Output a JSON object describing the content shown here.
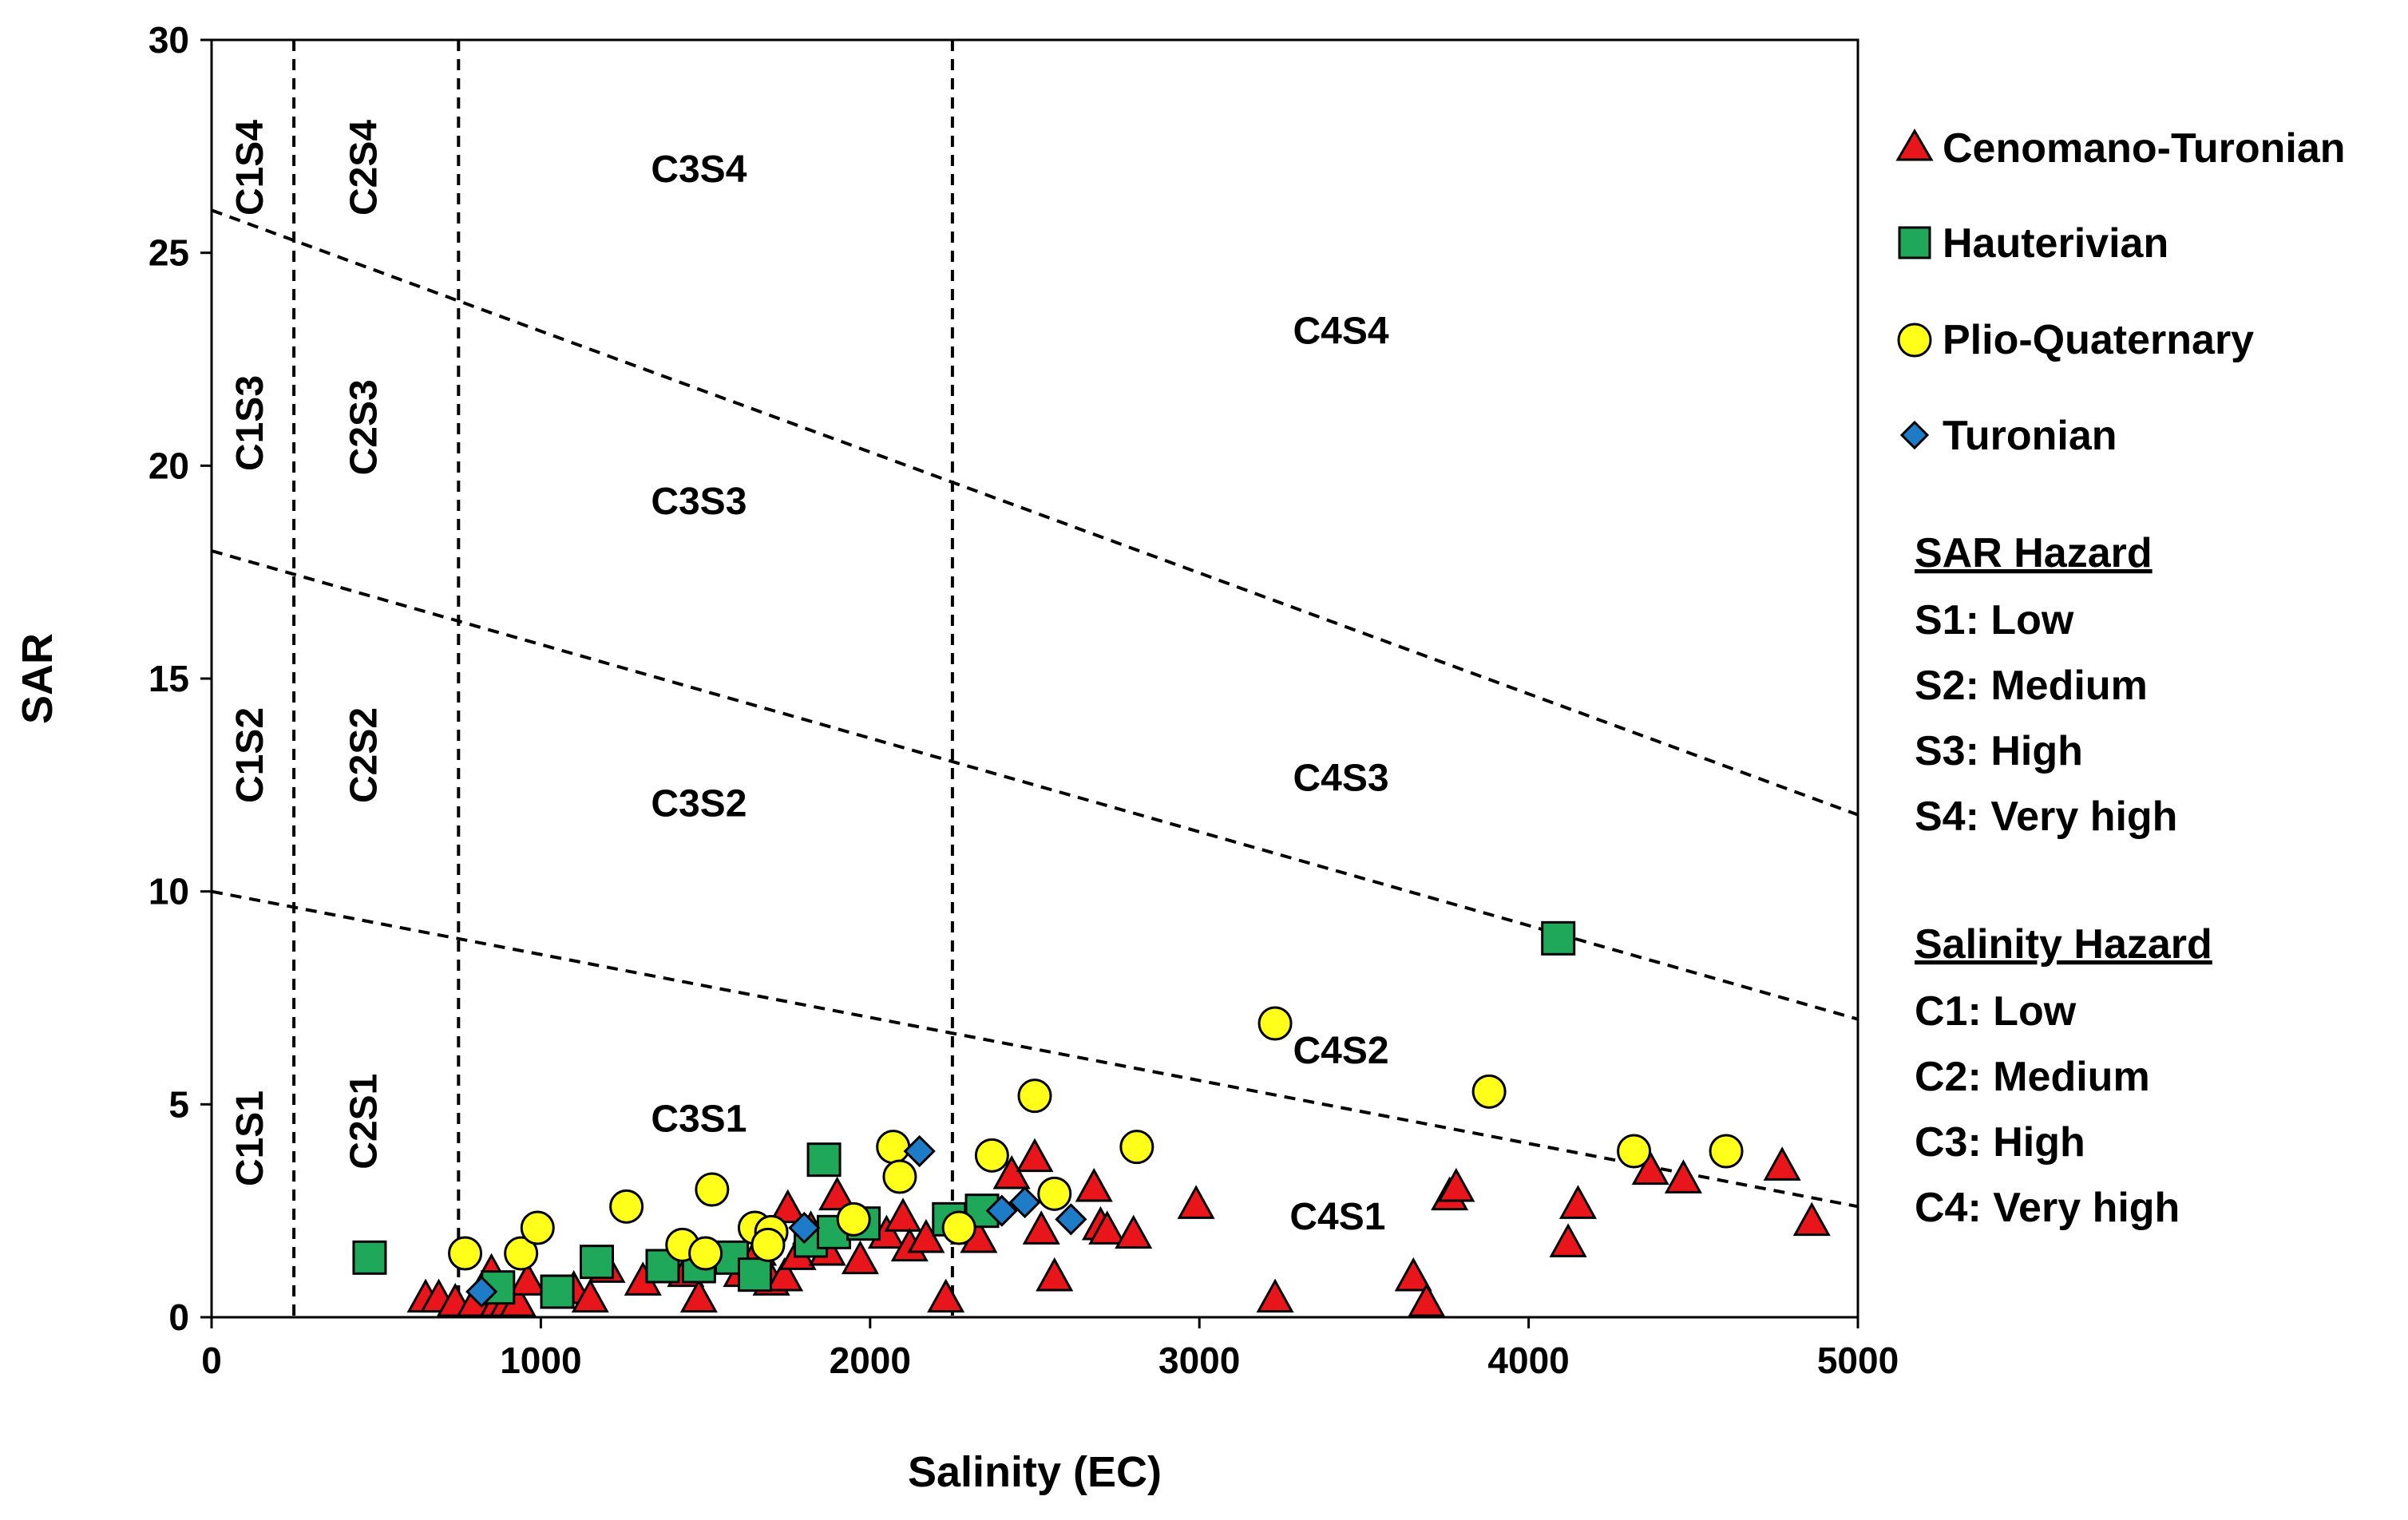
{
  "chart_data": {
    "type": "scatter",
    "title": "",
    "xlabel": "Salinity (EC)",
    "ylabel": "SAR",
    "xlim": [
      0,
      5000
    ],
    "ylim": [
      0,
      30
    ],
    "xticks": [
      "0",
      "1000",
      "2000",
      "3000",
      "4000",
      "5000"
    ],
    "xtick_values": [
      0,
      1000,
      2000,
      3000,
      4000,
      5000
    ],
    "yticks": [
      "0",
      "5",
      "10",
      "15",
      "20",
      "25",
      "30"
    ],
    "ytick_values": [
      0,
      5,
      10,
      15,
      20,
      25,
      30
    ],
    "grid": false,
    "legend_position": "right",
    "boundaries": {
      "salinity_verticals": [
        250,
        750,
        2250
      ],
      "sar_lines": [
        {
          "x0": 0,
          "y0": 10,
          "x1": 5000,
          "y1": 2.6
        },
        {
          "x0": 0,
          "y0": 18,
          "x1": 5000,
          "y1": 7
        },
        {
          "x0": 0,
          "y0": 26,
          "x1": 5000,
          "y1": 11.8
        }
      ]
    },
    "regions": [
      {
        "label": "C1S4",
        "x": 125,
        "y": 27,
        "rotate": true
      },
      {
        "label": "C2S4",
        "x": 470,
        "y": 27,
        "rotate": true
      },
      {
        "label": "C3S4",
        "x": 1480,
        "y": 26.9,
        "rotate": false
      },
      {
        "label": "C4S4",
        "x": 3430,
        "y": 23.1,
        "rotate": false
      },
      {
        "label": "C1S3",
        "x": 125,
        "y": 21,
        "rotate": true
      },
      {
        "label": "C2S3",
        "x": 470,
        "y": 20.9,
        "rotate": true
      },
      {
        "label": "C3S3",
        "x": 1480,
        "y": 19.1,
        "rotate": false
      },
      {
        "label": "C4S3",
        "x": 3430,
        "y": 12.6,
        "rotate": false
      },
      {
        "label": "C1S2",
        "x": 125,
        "y": 13.2,
        "rotate": true
      },
      {
        "label": "C2S2",
        "x": 470,
        "y": 13.2,
        "rotate": true
      },
      {
        "label": "C3S2",
        "x": 1480,
        "y": 12,
        "rotate": false
      },
      {
        "label": "C4S2",
        "x": 3430,
        "y": 6.2,
        "rotate": false
      },
      {
        "label": "C1S1",
        "x": 125,
        "y": 4.2,
        "rotate": true
      },
      {
        "label": "C2S1",
        "x": 470,
        "y": 4.6,
        "rotate": true
      },
      {
        "label": "C3S1",
        "x": 1480,
        "y": 4.6,
        "rotate": false
      },
      {
        "label": "C4S1",
        "x": 3420,
        "y": 2.3,
        "rotate": false
      }
    ],
    "series": [
      {
        "name": "Cenomano-Turonian",
        "marker": "triangle",
        "color": "#e8161b",
        "points": [
          [
            650,
            0.4
          ],
          [
            690,
            0.4
          ],
          [
            740,
            0.3
          ],
          [
            800,
            0.3
          ],
          [
            850,
            1.0
          ],
          [
            870,
            0.3
          ],
          [
            900,
            0.3
          ],
          [
            930,
            0.3
          ],
          [
            960,
            0.8
          ],
          [
            1100,
            0.6
          ],
          [
            1150,
            0.4
          ],
          [
            1200,
            1.1
          ],
          [
            1310,
            0.8
          ],
          [
            1440,
            1.0
          ],
          [
            1480,
            0.4
          ],
          [
            1530,
            1.3
          ],
          [
            1610,
            1.0
          ],
          [
            1660,
            1.5
          ],
          [
            1700,
            0.8
          ],
          [
            1740,
            0.9
          ],
          [
            1750,
            2.5
          ],
          [
            1780,
            1.4
          ],
          [
            1820,
            2.0
          ],
          [
            1870,
            1.5
          ],
          [
            1900,
            2.8
          ],
          [
            1970,
            1.3
          ],
          [
            2050,
            1.9
          ],
          [
            2100,
            2.3
          ],
          [
            2120,
            1.6
          ],
          [
            2170,
            1.8
          ],
          [
            2230,
            0.4
          ],
          [
            2300,
            2.0
          ],
          [
            2330,
            1.8
          ],
          [
            2430,
            3.3
          ],
          [
            2500,
            3.7
          ],
          [
            2520,
            2.0
          ],
          [
            2560,
            0.9
          ],
          [
            2680,
            3.0
          ],
          [
            2700,
            2.1
          ],
          [
            2720,
            2.0
          ],
          [
            2800,
            1.9
          ],
          [
            2990,
            2.6
          ],
          [
            3230,
            0.4
          ],
          [
            3650,
            0.9
          ],
          [
            3690,
            0.3
          ],
          [
            3760,
            2.8
          ],
          [
            3780,
            3.0
          ],
          [
            4120,
            1.7
          ],
          [
            4150,
            2.6
          ],
          [
            4370,
            3.4
          ],
          [
            4470,
            3.2
          ],
          [
            4770,
            3.5
          ],
          [
            4860,
            2.2
          ]
        ]
      },
      {
        "name": "Hauterivian",
        "marker": "square",
        "color": "#1fa85a",
        "points": [
          [
            480,
            1.4
          ],
          [
            870,
            0.7
          ],
          [
            1050,
            0.6
          ],
          [
            1170,
            1.3
          ],
          [
            1370,
            1.2
          ],
          [
            1480,
            1.2
          ],
          [
            1580,
            1.4
          ],
          [
            1650,
            1.0
          ],
          [
            1820,
            1.8
          ],
          [
            1860,
            3.7
          ],
          [
            1890,
            2.0
          ],
          [
            1980,
            2.2
          ],
          [
            2240,
            2.3
          ],
          [
            2340,
            2.5
          ],
          [
            4090,
            8.9
          ]
        ]
      },
      {
        "name": "Plio-Quaternary",
        "marker": "circle",
        "color": "#ffff19",
        "points": [
          [
            770,
            1.5
          ],
          [
            940,
            1.5
          ],
          [
            990,
            2.1
          ],
          [
            1260,
            2.6
          ],
          [
            1430,
            1.7
          ],
          [
            1520,
            3.0
          ],
          [
            1500,
            1.5
          ],
          [
            1650,
            2.1
          ],
          [
            1700,
            2.0
          ],
          [
            1690,
            1.7
          ],
          [
            1950,
            2.3
          ],
          [
            2070,
            4.0
          ],
          [
            2090,
            3.3
          ],
          [
            2270,
            2.1
          ],
          [
            2370,
            3.8
          ],
          [
            2500,
            5.2
          ],
          [
            2560,
            2.9
          ],
          [
            2810,
            4.0
          ],
          [
            3230,
            6.9
          ],
          [
            3880,
            5.3
          ],
          [
            4320,
            3.9
          ],
          [
            4600,
            3.9
          ]
        ]
      },
      {
        "name": "Turonian",
        "marker": "diamond",
        "color": "#1e7bc8",
        "points": [
          [
            820,
            0.6
          ],
          [
            1800,
            2.1
          ],
          [
            2150,
            3.9
          ],
          [
            2400,
            2.5
          ],
          [
            2470,
            2.7
          ],
          [
            2610,
            2.3
          ]
        ]
      }
    ]
  },
  "legend": {
    "entries": [
      "Cenomano-Turonian",
      "Hauterivian",
      "Plio-Quaternary",
      "Turonian"
    ]
  },
  "sar_hazard": {
    "title": "SAR Hazard",
    "items": [
      "S1: Low",
      "S2: Medium",
      "S3: High",
      "S4: Very high"
    ]
  },
  "salinity_hazard": {
    "title": "Salinity Hazard",
    "items": [
      "C1: Low",
      "C2: Medium",
      "C3: High",
      "C4: Very high"
    ]
  }
}
